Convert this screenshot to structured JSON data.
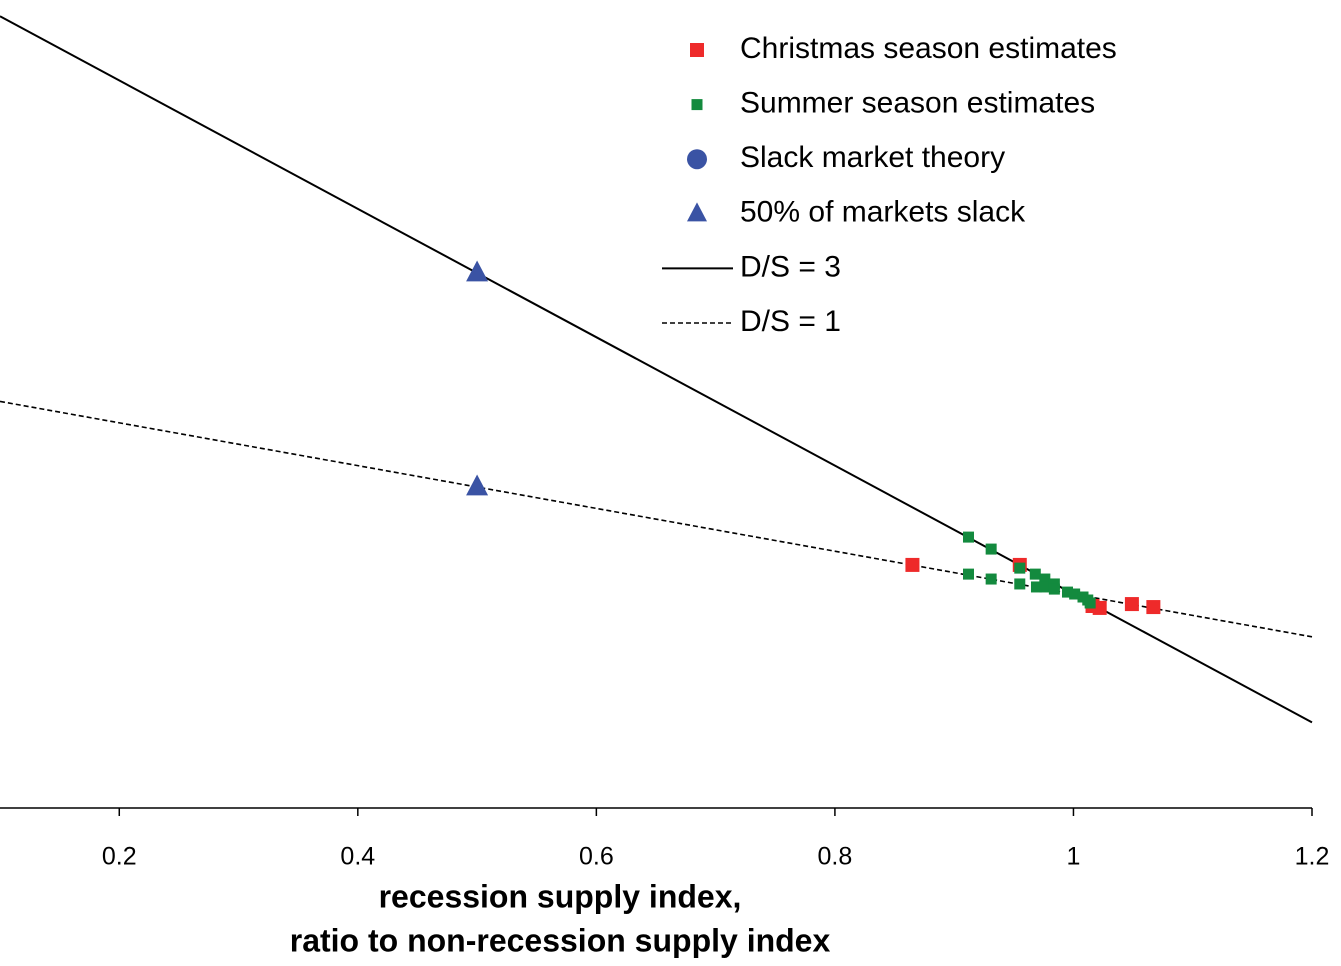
{
  "chart_data": {
    "type": "scatter",
    "xlabel": [
      "recession supply index,",
      "ratio to non-recession supply index"
    ],
    "xlim": [
      0.1,
      1.2
    ],
    "ylim": [
      0,
      3.776
    ],
    "xticks": [
      0.2,
      0.4,
      0.6,
      0.8,
      1,
      1.2
    ],
    "legend": "upper right",
    "series": [
      {
        "name": "Christmas season estimates",
        "color": "#ee2a2a",
        "mode": "markers",
        "marker": "square",
        "x": [
          0.865,
          0.955,
          1.016,
          1.022,
          1.049,
          1.067
        ],
        "values": [
          1.136,
          1.136,
          0.944,
          0.935,
          0.953,
          0.939
        ]
      },
      {
        "name": "Summer season estimates",
        "color": "#138a3e",
        "mode": "markers",
        "marker": "square",
        "x": [
          0.912,
          0.931,
          0.912,
          0.931,
          0.955,
          0.955,
          0.968,
          0.969,
          0.976,
          0.976,
          0.984,
          0.984,
          0.995,
          1.001,
          1.008,
          1.012,
          1.014
        ],
        "values": [
          1.266,
          1.21,
          1.093,
          1.07,
          1.121,
          1.047,
          1.093,
          1.033,
          1.07,
          1.033,
          1.047,
          1.023,
          1.009,
          1.0,
          0.986,
          0.972,
          0.958
        ]
      },
      {
        "name": "Slack market theory",
        "color": "#3a53a4",
        "mode": "markers",
        "marker": "circle",
        "x": [],
        "values": []
      },
      {
        "name": "50% of markets slack",
        "color": "#3a53a4",
        "mode": "markers",
        "marker": "triangle",
        "x": [
          0.5,
          0.5
        ],
        "values": [
          2.5,
          1.5
        ]
      },
      {
        "name": "D/S = 3",
        "color": "#000000",
        "mode": "line",
        "dash": false,
        "x": [
          0.1,
          1.2
        ],
        "values": [
          3.7,
          0.4
        ]
      },
      {
        "name": "D/S = 1",
        "color": "#000000",
        "mode": "line",
        "dash": true,
        "x": [
          0.1,
          1.2
        ],
        "values": [
          1.9,
          0.8
        ]
      }
    ]
  }
}
